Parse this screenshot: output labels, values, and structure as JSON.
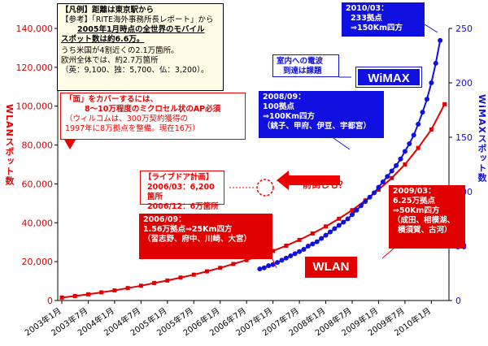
{
  "legend": {
    "line1": "【凡例】距離は東京駅から",
    "line2a": "【参考】「RITE海外事務所長レポート」から",
    "line3": "2005年1月時点の全世界のモバイル",
    "line4": "スポット数は約6.6万。",
    "line5": "うち米国が4割近くの2.1万箇所。",
    "line6": "欧州全体では、約2.7万箇所",
    "line7": "（英：9,100、独：5,700、仏：3,200）。"
  },
  "note_red": {
    "line1": "「面」をカバーするには、",
    "line2": "8～10万程度のミクロセル状のAP必須",
    "line3": "（ウィルコムは、300万契約獲得の",
    "line4": "1997年に8万拠点を整備。現在16万）"
  },
  "live_plan": {
    "line1": "【ライブドア計画】",
    "line2": "2006/03：6,200箇所",
    "line3": "2006/12：6万箇所"
  },
  "maedaoshi": "前倒しも？",
  "callouts": {
    "c2010_l1": "2010/03：",
    "c2010_l2": "233拠点",
    "c2010_l3": "⇒150Km四方",
    "c2008_l1": "2008/09：",
    "c2008_l2": "100拠点",
    "c2008_l3": "⇒100Km四方",
    "c2008_l4": "（銚子、甲府、伊豆、宇都宮）",
    "c2006_l1": "2006/09：",
    "c2006_l2": "1.56万拠点⇒25Km四方",
    "c2006_l3": "（習志野、府中、川崎、大宮）",
    "c2009_l1": "2009/03：",
    "c2009_l2": "6.25万拠点",
    "c2009_l3": "⇒50Km四方",
    "c2009_l4": "（成田、相模湖、",
    "c2009_l5": "横須賀、古河）",
    "indoor_l1": "室内への電波",
    "indoor_l2": "到達は課題"
  },
  "series_tags": {
    "wimax": "WiMAX",
    "wlan": "WLAN"
  },
  "axis_left_title": "WLANスポット数",
  "axis_right_title": "WiMAXスポット数",
  "colors": {
    "wlan": "#e00000",
    "wimax": "#1010e0"
  },
  "chart_data": {
    "type": "line",
    "x": [
      "2003年1月",
      "2003年4月",
      "2003年7月",
      "2003年10月",
      "2004年1月",
      "2004年4月",
      "2004年7月",
      "2004年10月",
      "2005年1月",
      "2005年4月",
      "2005年7月",
      "2005年10月",
      "2006年1月",
      "2006年4月",
      "2006年7月",
      "2006年10月",
      "2007年1月",
      "2007年4月",
      "2007年7月",
      "2007年10月",
      "2008年1月",
      "2008年4月",
      "2008年7月",
      "2008年10月",
      "2009年1月",
      "2009年4月",
      "2009年7月",
      "2009年10月",
      "2010年1月",
      "2010年4月"
    ],
    "xtick_labels": [
      "2003年1月",
      "2003年7月",
      "2004年1月",
      "2004年7月",
      "2005年1月",
      "2005年7月",
      "2006年1月",
      "2006年7月",
      "2007年1月",
      "2007年7月",
      "2008年1月",
      "2008年7月",
      "2009年1月",
      "2009年7月",
      "2010年1月"
    ],
    "series": [
      {
        "name": "WLAN",
        "axis": "left",
        "values": [
          1500,
          2300,
          3200,
          4200,
          5200,
          6400,
          7600,
          9000,
          10300,
          11800,
          13300,
          15000,
          16800,
          18800,
          20800,
          23000,
          25500,
          28200,
          31200,
          34500,
          38100,
          42100,
          46500,
          51500,
          57000,
          63000,
          70000,
          78500,
          88000,
          101000
        ]
      },
      {
        "name": "WiMAX",
        "axis": "right",
        "x": [
          "2006年10月",
          "2006年11月",
          "2006年12月",
          "2007年1月",
          "2007年2月",
          "2007年3月",
          "2007年4月",
          "2007年5月",
          "2007年6月",
          "2007年7月",
          "2007年8月",
          "2007年9月",
          "2007年10月",
          "2007年11月",
          "2007年12月",
          "2008年1月",
          "2008年2月",
          "2008年3月",
          "2008年4月",
          "2008年5月",
          "2008年6月",
          "2008年7月",
          "2008年8月",
          "2008年9月",
          "2008年10月",
          "2008年11月",
          "2008年12月",
          "2009年1月",
          "2009年2月",
          "2009年3月",
          "2009年4月",
          "2009年5月",
          "2009年6月",
          "2009年7月",
          "2009年8月",
          "2009年9月",
          "2009年10月",
          "2009年11月",
          "2009年12月",
          "2010年1月",
          "2010年2月",
          "2010年3月"
        ],
        "values": [
          29,
          30,
          32,
          33,
          35,
          37,
          39,
          41,
          43,
          45,
          47,
          50,
          52,
          54,
          57,
          60,
          63,
          66,
          69,
          72,
          75,
          79,
          83,
          87,
          91,
          95,
          99,
          104,
          109,
          114,
          119,
          124,
          130,
          137,
          144,
          152,
          162,
          173,
          185,
          200,
          218,
          239
        ]
      }
    ],
    "ylim_left": [
      0,
      140000
    ],
    "ylim_right": [
      0,
      250
    ],
    "yticks_left": [
      "0",
      "20,000",
      "40,000",
      "60,000",
      "80,000",
      "100,000",
      "120,000",
      "140,000"
    ],
    "yticks_right": [
      "0",
      "50",
      "100",
      "150",
      "200",
      "250"
    ],
    "grid": false
  }
}
